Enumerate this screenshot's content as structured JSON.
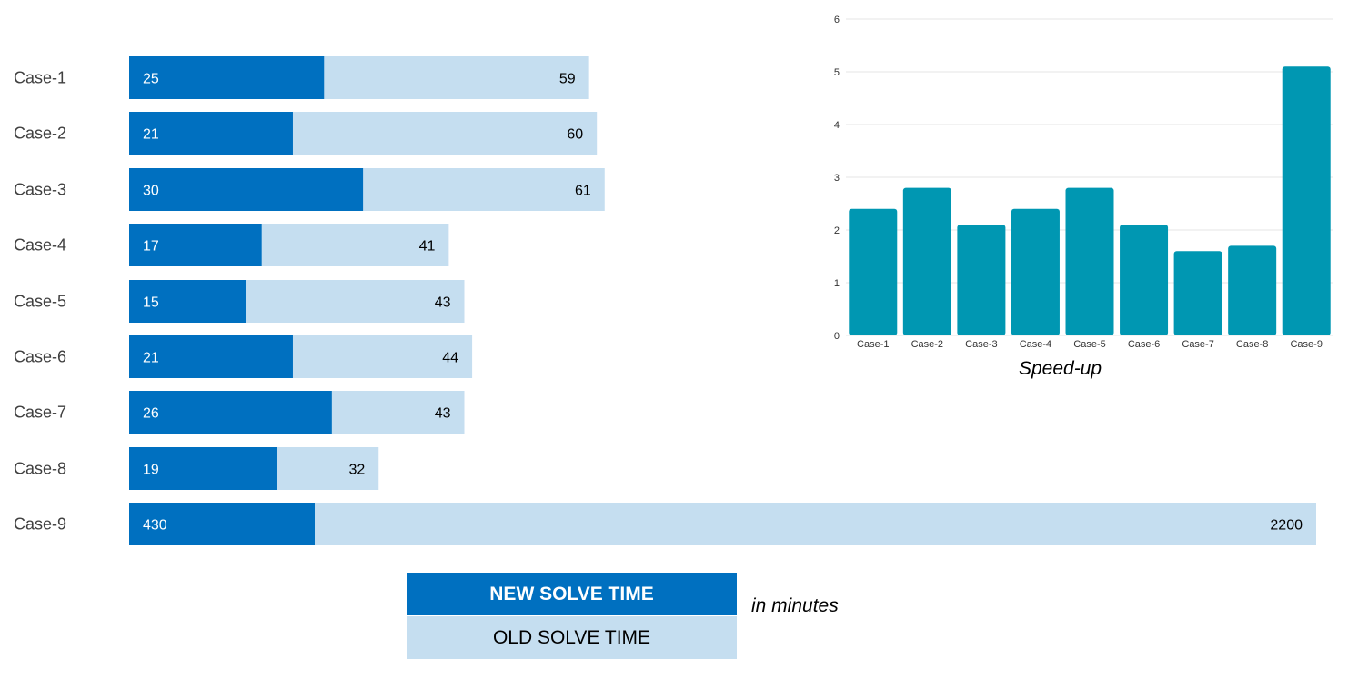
{
  "chart_data": [
    {
      "type": "bar",
      "orientation": "horizontal",
      "categories": [
        "Case-1",
        "Case-2",
        "Case-3",
        "Case-4",
        "Case-5",
        "Case-6",
        "Case-7",
        "Case-8",
        "Case-9"
      ],
      "series": [
        {
          "name": "NEW SOLVE TIME",
          "values": [
            25,
            21,
            30,
            17,
            15,
            21,
            26,
            19,
            430
          ]
        },
        {
          "name": "OLD SOLVE TIME",
          "values": [
            59,
            60,
            61,
            41,
            43,
            44,
            43,
            32,
            2200
          ]
        }
      ],
      "colors": {
        "new": "#0070C0",
        "old": "#C5DEF0"
      },
      "data_labels": true,
      "grid": false
    },
    {
      "type": "bar",
      "title": "Speed-up",
      "categories": [
        "Case-1",
        "Case-2",
        "Case-3",
        "Case-4",
        "Case-5",
        "Case-6",
        "Case-7",
        "Case-8",
        "Case-9"
      ],
      "values": [
        2.4,
        2.8,
        2.1,
        2.4,
        2.8,
        2.1,
        1.6,
        1.7,
        5.1
      ],
      "ylim": [
        0,
        6
      ],
      "yticks": [
        "0",
        "1",
        "2",
        "3",
        "4",
        "5",
        "6"
      ],
      "grid": true,
      "colors": {
        "bar": "#0097B2",
        "grid": "#E6E6E6"
      }
    }
  ],
  "legend": {
    "new_label": "NEW SOLVE TIME",
    "old_label": "OLD SOLVE TIME",
    "units_note": "in minutes"
  }
}
